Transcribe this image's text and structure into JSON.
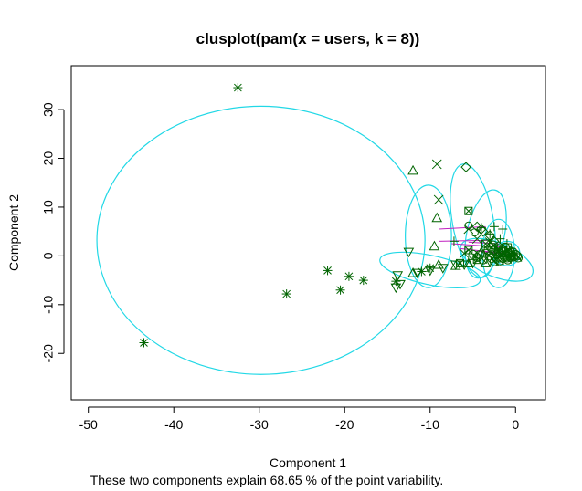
{
  "chart_data": {
    "type": "scatter",
    "title": "clusplot(pam(x = users, k = 8))",
    "xlabel": "Component 1",
    "ylabel": "Component 2",
    "subtitle": "These two components explain 68.65 % of the point variability.",
    "xlim": [
      -52,
      3.5
    ],
    "ylim": [
      -29.5,
      39
    ],
    "x_ticks": [
      -50,
      -40,
      -30,
      -20,
      -10,
      0
    ],
    "y_ticks": [
      -20,
      -10,
      0,
      10,
      20,
      30
    ],
    "grid": false,
    "legend": "none",
    "colors": {
      "ellipse": "#22d8e6",
      "points": "#006400",
      "segments": "#c020c0"
    },
    "ellipses": [
      {
        "cx": -29.8,
        "cy": 3.2,
        "rx": 19.2,
        "ry": 27.5,
        "angle": 0
      },
      {
        "cx": -10.2,
        "cy": 4.0,
        "rx": 2.7,
        "ry": 10.5,
        "angle": 0
      },
      {
        "cx": -5.0,
        "cy": 7.2,
        "rx": 2.4,
        "ry": 11.8,
        "angle": -10
      },
      {
        "cx": -3.5,
        "cy": 4.5,
        "rx": 2.2,
        "ry": 9.2,
        "angle": 12
      },
      {
        "cx": -2.0,
        "cy": 0.5,
        "rx": 1.9,
        "ry": 7.0,
        "angle": 0
      },
      {
        "cx": -10.0,
        "cy": -2.9,
        "rx": 6.0,
        "ry": 3.0,
        "angle": 12
      },
      {
        "cx": -2.2,
        "cy": -0.8,
        "rx": 4.5,
        "ry": 3.5,
        "angle": 22
      },
      {
        "cx": -1.0,
        "cy": 0.5,
        "rx": 1.5,
        "ry": 2.5,
        "angle": 0
      }
    ],
    "segments": [
      {
        "x1": -9.0,
        "y1": 5.5,
        "x2": -3.5,
        "y2": 6.0
      },
      {
        "x1": -9.0,
        "y1": 3.0,
        "x2": -3.0,
        "y2": 3.2
      },
      {
        "x1": -7.5,
        "y1": 2.5,
        "x2": -1.5,
        "y2": 1.8
      },
      {
        "x1": -6.5,
        "y1": 1.5,
        "x2": -1.0,
        "y2": 0.5
      },
      {
        "x1": -5.5,
        "y1": 2.8,
        "x2": -2.0,
        "y2": 2.5
      },
      {
        "x1": -4.5,
        "y1": 1.0,
        "x2": -0.5,
        "y2": 0.2
      }
    ],
    "series": [
      {
        "symbol": "star",
        "points": [
          [
            -32.5,
            34.5
          ],
          [
            -43.5,
            -17.8
          ],
          [
            -26.8,
            -7.8
          ],
          [
            -22.0,
            -3.0
          ],
          [
            -19.5,
            -4.2
          ],
          [
            -20.5,
            -7.0
          ],
          [
            -17.8,
            -5.0
          ],
          [
            -14.0,
            -5.2
          ],
          [
            -11.0,
            -3.2
          ],
          [
            -10.0,
            -2.5
          ]
        ]
      },
      {
        "symbol": "triangle",
        "points": [
          [
            -12.0,
            17.5
          ],
          [
            -9.2,
            7.8
          ],
          [
            -9.5,
            2.0
          ],
          [
            -9.0,
            -1.8
          ],
          [
            -12.0,
            -3.5
          ],
          [
            -7.0,
            -2.0
          ],
          [
            -5.5,
            -1.5
          ],
          [
            -3.5,
            -1.5
          ],
          [
            -2.0,
            -0.5
          ],
          [
            -1.0,
            0.5
          ],
          [
            -4.0,
            0.8
          ]
        ]
      },
      {
        "symbol": "diamond",
        "points": [
          [
            -5.8,
            18.2
          ],
          [
            -4.5,
            6.0
          ],
          [
            -4.0,
            5.5
          ],
          [
            -3.0,
            4.2
          ],
          [
            -2.5,
            3.0
          ],
          [
            -3.8,
            5.0
          ],
          [
            -2.0,
            2.0
          ],
          [
            -1.5,
            1.5
          ]
        ]
      },
      {
        "symbol": "cross",
        "points": [
          [
            -9.2,
            18.8
          ],
          [
            -9.0,
            11.5
          ],
          [
            -5.5,
            5.5
          ],
          [
            -4.5,
            3.5
          ],
          [
            -3.0,
            2.8
          ],
          [
            -1.0,
            1.0
          ],
          [
            -0.5,
            0.2
          ],
          [
            -2.5,
            -1.0
          ],
          [
            -6.0,
            0.5
          ]
        ]
      },
      {
        "symbol": "boxtimes",
        "points": [
          [
            -5.5,
            9.2
          ],
          [
            -5.5,
            1.2
          ],
          [
            -3.5,
            2.5
          ],
          [
            -2.8,
            1.8
          ],
          [
            -2.0,
            0.8
          ],
          [
            -6.5,
            -1.5
          ],
          [
            -4.5,
            -0.8
          ]
        ]
      },
      {
        "symbol": "invtriangle",
        "points": [
          [
            -12.5,
            0.8
          ],
          [
            -13.8,
            -4.0
          ],
          [
            -13.5,
            -5.8
          ],
          [
            -14.0,
            -6.5
          ],
          [
            -11.5,
            -3.5
          ],
          [
            -10.0,
            -3.0
          ],
          [
            -8.5,
            -2.5
          ],
          [
            -7.0,
            -1.8
          ],
          [
            -6.0,
            -1.8
          ],
          [
            -5.0,
            -1.5
          ]
        ]
      },
      {
        "symbol": "plus",
        "points": [
          [
            -4.0,
            5.8
          ],
          [
            -3.0,
            4.5
          ],
          [
            -2.5,
            6.0
          ],
          [
            -1.8,
            3.5
          ],
          [
            -1.0,
            2.5
          ],
          [
            -0.5,
            1.5
          ],
          [
            -7.2,
            3.0
          ],
          [
            -1.5,
            5.5
          ],
          [
            -0.2,
            0.5
          ]
        ]
      },
      {
        "symbol": "circle",
        "points": [
          [
            -5.5,
            6.2
          ],
          [
            -4.8,
            4.8
          ],
          [
            -2.5,
            1.2
          ],
          [
            -1.0,
            -0.5
          ],
          [
            -0.5,
            -0.2
          ]
        ]
      },
      {
        "symbol": "cluster",
        "points": [
          [
            -3.5,
            0.5
          ],
          [
            -3.0,
            0.0
          ],
          [
            -2.8,
            -0.5
          ],
          [
            -2.2,
            0.3
          ],
          [
            -2.0,
            -0.2
          ],
          [
            -1.8,
            0.6
          ],
          [
            -1.5,
            -0.4
          ],
          [
            -1.2,
            0.2
          ],
          [
            -1.0,
            -0.1
          ],
          [
            -0.8,
            0.4
          ],
          [
            -0.6,
            -0.3
          ],
          [
            -0.4,
            0.1
          ],
          [
            -0.2,
            -0.2
          ],
          [
            0.0,
            0.3
          ],
          [
            0.2,
            0.0
          ],
          [
            -1.5,
            1.0
          ],
          [
            -2.5,
            -1.2
          ],
          [
            -3.8,
            -0.8
          ],
          [
            -4.2,
            0.2
          ],
          [
            -1.2,
            1.8
          ],
          [
            -0.8,
            1.2
          ],
          [
            -0.3,
            0.8
          ],
          [
            -2.0,
            1.5
          ],
          [
            -3.2,
            1.2
          ],
          [
            -4.5,
            -0.3
          ],
          [
            -5.0,
            0.3
          ],
          [
            -1.8,
            -1.0
          ],
          [
            -0.9,
            -0.8
          ],
          [
            0.3,
            -0.4
          ],
          [
            -2.6,
            2.2
          ]
        ]
      }
    ]
  }
}
